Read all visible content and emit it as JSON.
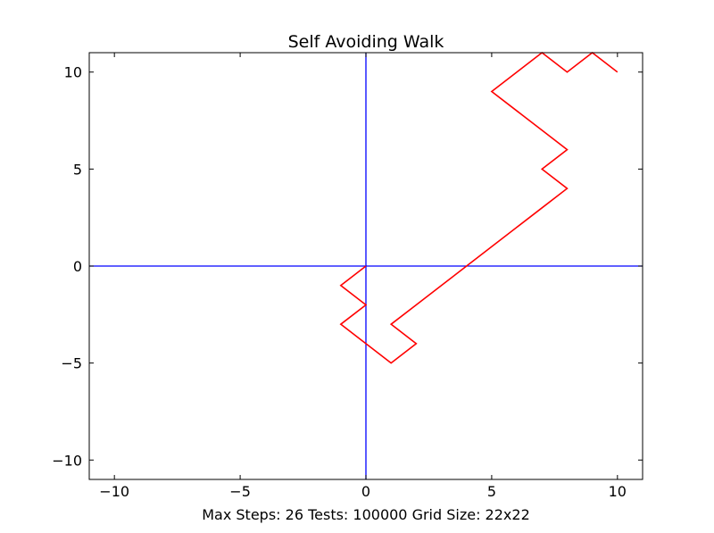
{
  "chart_data": {
    "type": "line",
    "title": "Self Avoiding Walk",
    "xlabel": "Max Steps: 26 Tests: 100000 Grid Size: 22x22",
    "ylabel": "",
    "xlim": [
      -11,
      11
    ],
    "ylim": [
      -11,
      11
    ],
    "xticks": [
      -10,
      -5,
      0,
      5,
      10
    ],
    "yticks": [
      -10,
      -5,
      0,
      5,
      10
    ],
    "xtick_labels": [
      "−10",
      "−5",
      "0",
      "5",
      "10"
    ],
    "ytick_labels": [
      "−10",
      "−5",
      "0",
      "5",
      "10"
    ],
    "grid": false,
    "axis_lines": {
      "x0": true,
      "y0": true,
      "color": "#0000ff"
    },
    "series": [
      {
        "color": "#ff0000",
        "x": [
          0,
          -1,
          0,
          -1,
          0,
          1,
          2,
          1,
          2,
          3,
          4,
          5,
          6,
          7,
          8,
          7,
          8,
          7,
          6,
          5,
          6,
          7,
          8,
          9,
          10
        ],
        "y": [
          0,
          -1,
          -2,
          -3,
          -4,
          -5,
          -4,
          -3,
          -2,
          -1,
          0,
          1,
          2,
          3,
          4,
          5,
          6,
          7,
          8,
          9,
          10,
          11,
          10,
          11,
          10
        ]
      }
    ]
  }
}
